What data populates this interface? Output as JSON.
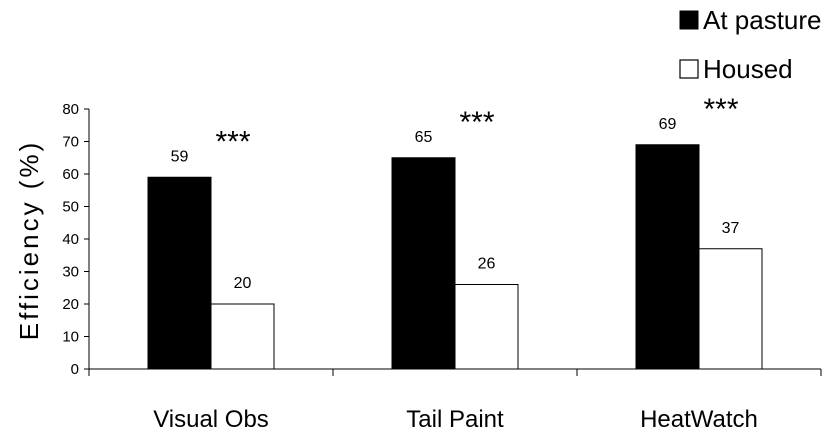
{
  "chart_data": {
    "type": "bar",
    "ylabel": "Efficiency (%)",
    "xlabel": "",
    "ylim": [
      0,
      80
    ],
    "yticks": [
      0,
      10,
      20,
      30,
      40,
      50,
      60,
      70,
      80
    ],
    "grid": false,
    "legend": "top-right",
    "categories": [
      "Visual Obs",
      "Tail Paint",
      "HeatWatch"
    ],
    "series": [
      {
        "name": "At pasture",
        "values": [
          59,
          65,
          69
        ],
        "color": "#000000"
      },
      {
        "name": "Housed",
        "values": [
          20,
          26,
          37
        ],
        "color": "#ffffff"
      }
    ],
    "annotations": [
      "***",
      "***",
      "***"
    ]
  }
}
